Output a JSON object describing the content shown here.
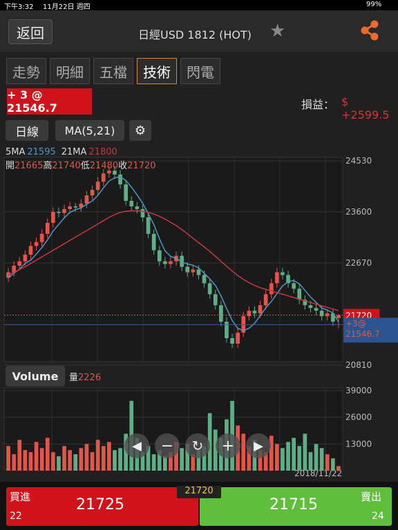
{
  "status_bar": {
    "time": "下午3:32",
    "date": "11月22日 週四",
    "battery": "99%"
  },
  "header": {
    "back": "返回",
    "title": "日經USD 1812 (HOT)"
  },
  "tabs": [
    "走勢",
    "明細",
    "五檔",
    "技術",
    "閃電"
  ],
  "position": {
    "text": "+ 3 @ 21546.7",
    "pnl_label": "損益：",
    "pnl_value": "$ +2599.5"
  },
  "toolbar": {
    "period": "日線",
    "indicator": "MA(5,21)"
  },
  "volume_button": "Volume",
  "order": {
    "buy_label": "買進",
    "buy_price": 21725,
    "buy_qty": 22,
    "sell_label": "賣出",
    "sell_price": 21715,
    "sell_qty": 24
  },
  "chart_data": [
    {
      "type": "candlestick",
      "up_color": "#e0574a",
      "down_color": "#5fae85",
      "ohlc_labels": [
        "開",
        "高",
        "低",
        "收"
      ],
      "ylim": [
        20810,
        24530
      ],
      "yticks": [
        20810,
        22670,
        23600,
        24530
      ],
      "position_line": {
        "value": 21546.7,
        "label": "+3@ 21546.7"
      },
      "open": [
        22400,
        22500,
        22620,
        22700,
        22820,
        22980,
        23050,
        23200,
        23400,
        23600,
        23580,
        23650,
        23700,
        23680,
        23750,
        23900,
        24000,
        24150,
        24300,
        24350,
        24280,
        24100,
        23800,
        23700,
        23650,
        23500,
        23200,
        22900,
        22700,
        22650,
        22700,
        22800,
        22600,
        22500,
        22550,
        22450,
        22300,
        22100,
        21900,
        21600,
        21300,
        21200,
        21400,
        21700,
        21800,
        21750,
        21900,
        22100,
        22300,
        22500,
        22450,
        22300,
        22200,
        22000,
        21900,
        21850,
        21800,
        21700,
        21750,
        21665
      ],
      "high": [
        22580,
        22700,
        22780,
        22900,
        23060,
        23130,
        23280,
        23480,
        23680,
        23680,
        23730,
        23780,
        23760,
        23830,
        23980,
        24080,
        24230,
        24380,
        24430,
        24430,
        24360,
        24180,
        23880,
        23780,
        23730,
        23580,
        23280,
        22980,
        22780,
        22780,
        22880,
        22880,
        22680,
        22630,
        22630,
        22530,
        22380,
        22180,
        21980,
        21680,
        21380,
        21480,
        21780,
        21880,
        21880,
        21980,
        22180,
        22380,
        22580,
        22580,
        22530,
        22380,
        22280,
        22080,
        21980,
        21930,
        21880,
        21830,
        21830,
        21740
      ],
      "low": [
        22320,
        22420,
        22540,
        22620,
        22740,
        22900,
        22970,
        23120,
        23320,
        23500,
        23500,
        23570,
        23600,
        23600,
        23670,
        23820,
        23920,
        24070,
        24220,
        24200,
        24020,
        23720,
        23620,
        23570,
        23420,
        23120,
        22820,
        22620,
        22570,
        22570,
        22620,
        22520,
        22420,
        22420,
        22370,
        22220,
        22020,
        21820,
        21520,
        21220,
        21120,
        21120,
        21320,
        21620,
        21670,
        21670,
        21820,
        22020,
        22220,
        22370,
        22220,
        22120,
        21920,
        21820,
        21770,
        21720,
        21620,
        21620,
        21520,
        21480
      ],
      "close": [
        22500,
        22620,
        22700,
        22820,
        22980,
        23050,
        23200,
        23400,
        23600,
        23580,
        23650,
        23700,
        23680,
        23750,
        23900,
        24000,
        24150,
        24300,
        24350,
        24280,
        24100,
        23800,
        23700,
        23650,
        23500,
        23200,
        22900,
        22700,
        22650,
        22700,
        22800,
        22600,
        22500,
        22550,
        22450,
        22300,
        22100,
        21900,
        21600,
        21300,
        21200,
        21400,
        21700,
        21800,
        21750,
        21900,
        22100,
        22300,
        22500,
        22450,
        22300,
        22200,
        22000,
        21900,
        21850,
        21800,
        21700,
        21750,
        21600,
        21720
      ],
      "series": [
        {
          "name": "5MA",
          "color": "#4f97c9",
          "values": [
            22400,
            22480,
            22560,
            22660,
            22720,
            22830,
            22950,
            23090,
            23250,
            23370,
            23490,
            23590,
            23640,
            23670,
            23740,
            23800,
            23900,
            24040,
            24160,
            24220,
            24240,
            24170,
            24050,
            23910,
            23760,
            23570,
            23370,
            23110,
            22890,
            22790,
            22750,
            22690,
            22650,
            22630,
            22580,
            22480,
            22380,
            22260,
            22070,
            21840,
            21620,
            21480,
            21440,
            21480,
            21570,
            21710,
            21850,
            21970,
            22110,
            22250,
            22330,
            22350,
            22290,
            22170,
            22050,
            21950,
            21850,
            21810,
            21760,
            21595
          ]
        },
        {
          "name": "21MA",
          "color": "#c8383a",
          "values": [
            22450,
            22500,
            22550,
            22600,
            22660,
            22720,
            22780,
            22840,
            22900,
            22960,
            23020,
            23080,
            23140,
            23200,
            23260,
            23320,
            23380,
            23440,
            23500,
            23550,
            23590,
            23610,
            23620,
            23620,
            23610,
            23590,
            23560,
            23520,
            23470,
            23410,
            23350,
            23280,
            23200,
            23120,
            23040,
            22960,
            22880,
            22790,
            22700,
            22610,
            22520,
            22440,
            22370,
            22310,
            22260,
            22220,
            22190,
            22160,
            22130,
            22100,
            22070,
            22040,
            22010,
            21980,
            21950,
            21920,
            21890,
            21860,
            21830,
            21800
          ]
        }
      ]
    },
    {
      "type": "bar",
      "legend_label": "量",
      "date_label": "2018/11/22",
      "ylim": [
        0,
        39000
      ],
      "yticks": [
        13000,
        26000,
        39000
      ],
      "values": [
        12000,
        8000,
        15000,
        10000,
        9000,
        14000,
        11000,
        16000,
        9000,
        7000,
        12000,
        10000,
        8000,
        11000,
        13000,
        9000,
        15000,
        12000,
        14000,
        10000,
        11000,
        18000,
        34000,
        16000,
        9000,
        12000,
        8000,
        10000,
        7000,
        9000,
        14000,
        11000,
        13000,
        8000,
        10000,
        12000,
        28000,
        20000,
        16000,
        25000,
        34000,
        22000,
        18000,
        12000,
        15000,
        10000,
        9000,
        17000,
        13000,
        11000,
        14000,
        16000,
        12000,
        18000,
        9000,
        13000,
        11000,
        8000,
        6000,
        2226
      ]
    }
  ]
}
